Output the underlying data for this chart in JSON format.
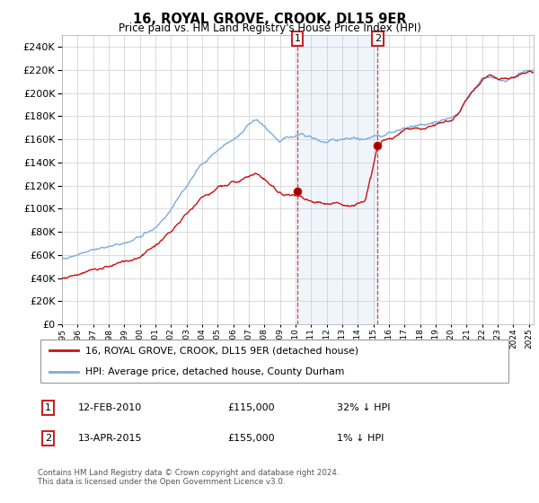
{
  "title": "16, ROYAL GROVE, CROOK, DL15 9ER",
  "subtitle": "Price paid vs. HM Land Registry's House Price Index (HPI)",
  "hpi_color": "#7aade0",
  "price_color": "#cc1111",
  "shade_color": "#ddeeff",
  "ylim": [
    0,
    250000
  ],
  "yticks": [
    0,
    20000,
    40000,
    60000,
    80000,
    100000,
    120000,
    140000,
    160000,
    180000,
    200000,
    220000,
    240000
  ],
  "sale1_year": 2010.12,
  "sale1_price": 115000,
  "sale2_year": 2015.28,
  "sale2_price": 155000,
  "legend_label_red": "16, ROYAL GROVE, CROOK, DL15 9ER (detached house)",
  "legend_label_blue": "HPI: Average price, detached house, County Durham",
  "footnote": "Contains HM Land Registry data © Crown copyright and database right 2024.\nThis data is licensed under the Open Government Licence v3.0.",
  "xmin": 1995,
  "xmax": 2025.3
}
